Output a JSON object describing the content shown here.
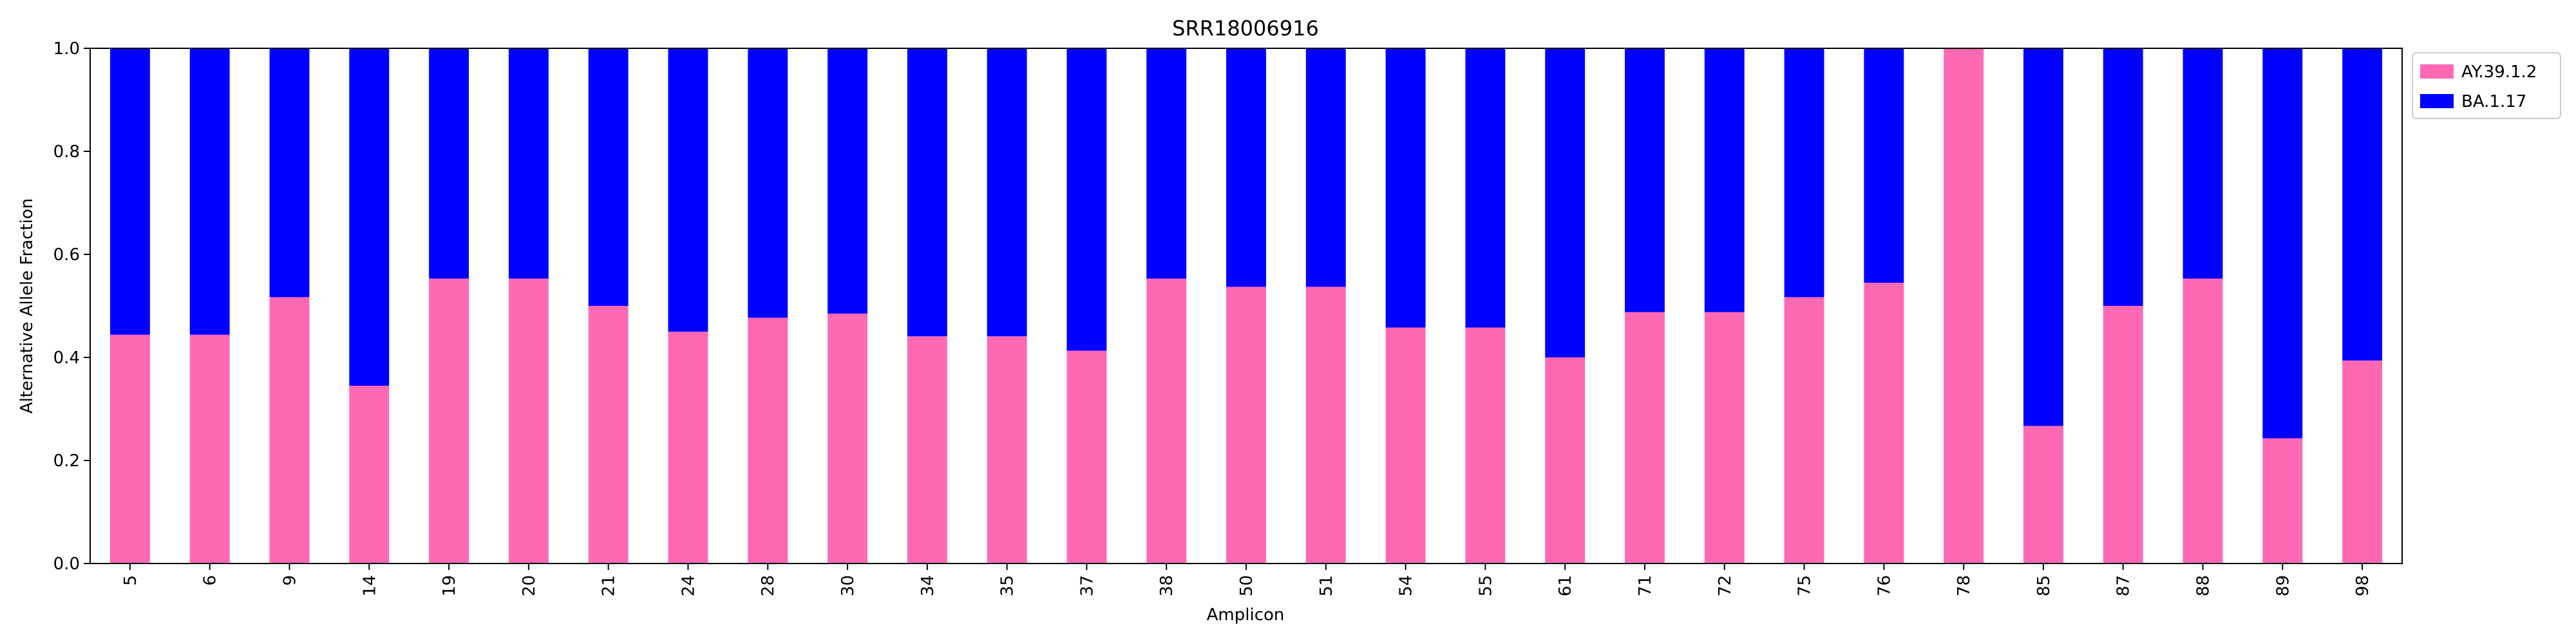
{
  "chart_data": {
    "type": "bar",
    "stacked": true,
    "title": "SRR18006916",
    "xlabel": "Amplicon",
    "ylabel": "Alternative Allele Fraction",
    "ylim": [
      0,
      1.0
    ],
    "yticks": [
      "0.0",
      "0.2",
      "0.4",
      "0.6",
      "0.8",
      "1.0"
    ],
    "grid": false,
    "legend_position": "outside top-right",
    "categories": [
      "5",
      "6",
      "9",
      "14",
      "19",
      "20",
      "21",
      "24",
      "28",
      "30",
      "34",
      "35",
      "37",
      "38",
      "50",
      "51",
      "54",
      "55",
      "61",
      "71",
      "72",
      "75",
      "76",
      "78",
      "85",
      "87",
      "88",
      "89",
      "98"
    ],
    "series": [
      {
        "name": "AY.39.1.2",
        "color": "#ff69b4",
        "values": [
          0.444,
          0.444,
          0.517,
          0.345,
          0.553,
          0.553,
          0.5,
          0.45,
          0.477,
          0.485,
          0.441,
          0.441,
          0.413,
          0.553,
          0.537,
          0.537,
          0.458,
          0.458,
          0.4,
          0.488,
          0.488,
          0.517,
          0.545,
          1.0,
          0.267,
          0.5,
          0.553,
          0.243,
          0.394
        ]
      },
      {
        "name": "BA.1.17",
        "color": "#0000ff",
        "values": [
          0.556,
          0.556,
          0.483,
          0.655,
          0.447,
          0.447,
          0.5,
          0.55,
          0.523,
          0.515,
          0.559,
          0.559,
          0.587,
          0.447,
          0.463,
          0.463,
          0.542,
          0.542,
          0.6,
          0.512,
          0.512,
          0.483,
          0.455,
          0.0,
          0.733,
          0.5,
          0.447,
          0.757,
          0.606
        ]
      }
    ]
  }
}
